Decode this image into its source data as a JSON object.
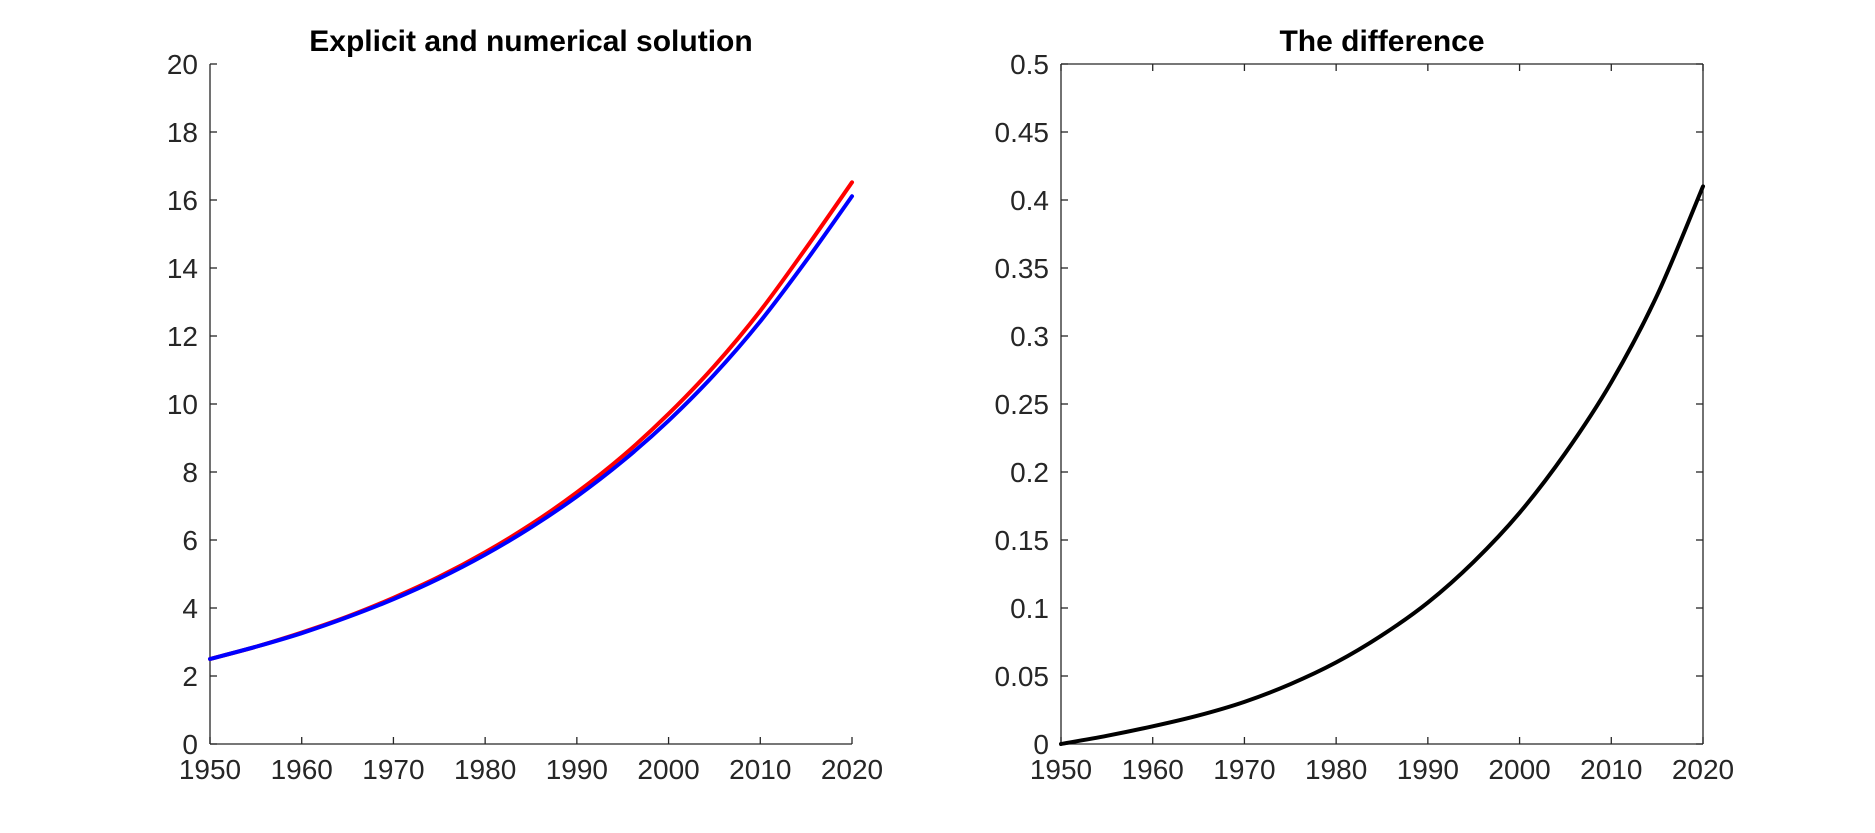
{
  "chart_data": [
    {
      "type": "line",
      "title": "Explicit and numerical solution",
      "xlabel": "",
      "ylabel": "",
      "xlim": [
        1950,
        2020
      ],
      "ylim": [
        0,
        20
      ],
      "x_ticks": [
        "1950",
        "1960",
        "1970",
        "1980",
        "1990",
        "2000",
        "2010",
        "2020"
      ],
      "y_ticks": [
        "0",
        "2",
        "4",
        "6",
        "8",
        "10",
        "12",
        "14",
        "16",
        "18",
        "20"
      ],
      "grid": false,
      "box": false,
      "series": [
        {
          "color": "#ff0000",
          "x": [
            1950,
            1955,
            1960,
            1965,
            1970,
            1975,
            1980,
            1985,
            1990,
            1995,
            2000,
            2005,
            2010,
            2015,
            2020
          ],
          "values": [
            2.5,
            2.86,
            3.28,
            3.75,
            4.3,
            4.92,
            5.64,
            6.46,
            7.4,
            8.47,
            9.71,
            11.12,
            12.74,
            14.59,
            16.52
          ]
        },
        {
          "color": "#0000ff",
          "x": [
            1950,
            1955,
            1960,
            1965,
            1970,
            1975,
            1980,
            1985,
            1990,
            1995,
            2000,
            2005,
            2010,
            2015,
            2020
          ],
          "values": [
            2.5,
            2.86,
            3.26,
            3.73,
            4.26,
            4.87,
            5.57,
            6.37,
            7.28,
            8.32,
            9.51,
            10.87,
            12.43,
            14.21,
            16.11
          ]
        }
      ]
    },
    {
      "type": "line",
      "title": "The difference",
      "xlabel": "",
      "ylabel": "",
      "xlim": [
        1950,
        2020
      ],
      "ylim": [
        0,
        0.5
      ],
      "x_ticks": [
        "1950",
        "1960",
        "1970",
        "1980",
        "1990",
        "2000",
        "2010",
        "2020"
      ],
      "y_ticks": [
        "0",
        "0.05",
        "0.1",
        "0.15",
        "0.2",
        "0.25",
        "0.3",
        "0.35",
        "0.4",
        "0.45",
        "0.5"
      ],
      "grid": false,
      "box": true,
      "series": [
        {
          "color": "#000000",
          "x": [
            1950,
            1955,
            1960,
            1965,
            1970,
            1975,
            1980,
            1985,
            1990,
            1995,
            2000,
            2005,
            2010,
            2015,
            2020
          ],
          "values": [
            0,
            0.006,
            0.013,
            0.021,
            0.031,
            0.044,
            0.06,
            0.08,
            0.104,
            0.134,
            0.17,
            0.214,
            0.266,
            0.33,
            0.41
          ]
        }
      ]
    }
  ]
}
